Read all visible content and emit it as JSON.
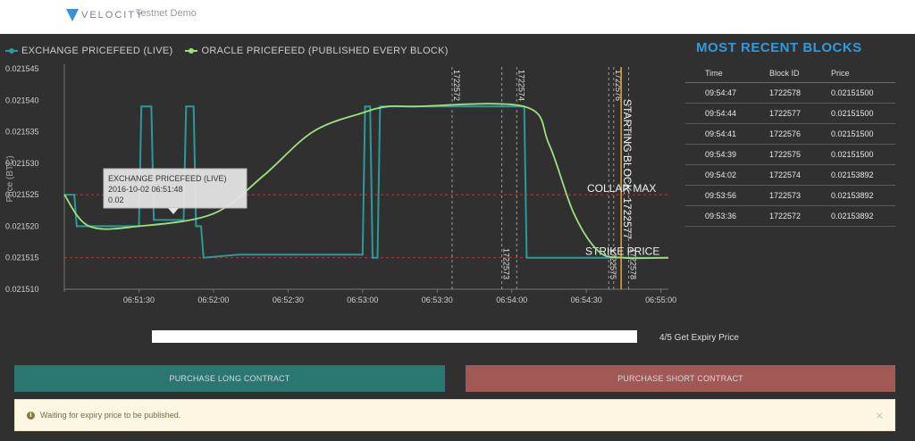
{
  "header": {
    "logo_text": "VELOCITY",
    "network_label": "Testnet Demo",
    "logo_color": "#3a8fd8"
  },
  "chart_data": {
    "type": "line",
    "ylabel": "Price (BTC)",
    "xlabel": "",
    "ylim": [
      0.02151,
      0.021545
    ],
    "xlim": [
      "06:51:00",
      "06:55:03"
    ],
    "y_ticks": [
      "0.021510",
      "0.021515",
      "0.021520",
      "0.021525",
      "0.021530",
      "0.021535",
      "0.021540",
      "0.021545"
    ],
    "x_ticks": [
      "06:51:30",
      "06:52:00",
      "06:52:30",
      "06:53:00",
      "06:53:30",
      "06:54:00",
      "06:54:30",
      "06:55:00"
    ],
    "legend_placement": "top-left",
    "series": [
      {
        "name": "EXCHANGE PRICEFEED (LIVE)",
        "color": "#2a9a9a",
        "x": [
          "06:51:00",
          "06:51:04",
          "06:51:05",
          "06:51:30",
          "06:51:31",
          "06:51:35",
          "06:51:36",
          "06:51:48",
          "06:51:49",
          "06:51:52",
          "06:51:53",
          "06:51:55",
          "06:51:56",
          "06:52:10",
          "06:53:00",
          "06:53:01",
          "06:53:03",
          "06:53:04",
          "06:53:06",
          "06:53:07",
          "06:54:05",
          "06:54:06",
          "06:55:03"
        ],
        "values": [
          0.021525,
          0.021525,
          0.02152,
          0.02152,
          0.021539,
          0.021539,
          0.021521,
          0.021521,
          0.021539,
          0.021539,
          0.02152,
          0.02152,
          0.021515,
          0.0215155,
          0.0215155,
          0.021539,
          0.021539,
          0.021515,
          0.021515,
          0.021539,
          0.021539,
          0.021515,
          0.021515
        ]
      },
      {
        "name": "ORACLE PRICEFEED (PUBLISHED EVERY BLOCK)",
        "color": "#9be27a",
        "x": [
          "06:51:00",
          "06:51:10",
          "06:51:30",
          "06:52:00",
          "06:52:20",
          "06:52:40",
          "06:53:00",
          "06:53:10",
          "06:53:20",
          "06:54:05",
          "06:54:15",
          "06:54:25",
          "06:54:35",
          "06:54:45",
          "06:55:03"
        ],
        "values": [
          0.021525,
          0.02152,
          0.02152,
          0.021522,
          0.021528,
          0.021535,
          0.021538,
          0.021539,
          0.021539,
          0.021539,
          0.021533,
          0.021522,
          0.021516,
          0.021515,
          0.021515
        ]
      }
    ],
    "reference_lines": [
      {
        "label": "COLLAR MAX",
        "value": 0.021525
      },
      {
        "label": "STRIKE PRICE",
        "value": 0.021515
      }
    ],
    "block_markers": [
      {
        "label": "1722572",
        "time": "06:53:36",
        "pos": "top"
      },
      {
        "label": "1722573",
        "time": "06:53:56",
        "pos": "bottom"
      },
      {
        "label": "1722574",
        "time": "06:54:02",
        "pos": "top"
      },
      {
        "label": "1722575",
        "time": "06:54:39",
        "pos": "bottom"
      },
      {
        "label": "1722576",
        "time": "06:54:41",
        "pos": "top"
      },
      {
        "label": "1722578",
        "time": "06:54:47",
        "pos": "bottom"
      }
    ],
    "starting_block": {
      "label": "STARTING BLOCK: 1722577",
      "time": "06:54:44"
    },
    "tooltip": {
      "title": "EXCHANGE PRICEFEED (LIVE)",
      "time": "2016-10-02 06:51:48",
      "value": "0.02"
    }
  },
  "recent_blocks": {
    "title": "MOST RECENT BLOCKS",
    "columns": [
      "Time",
      "Block ID",
      "Price"
    ],
    "rows": [
      [
        "09:54:47",
        "1722578",
        "0.02151500"
      ],
      [
        "09:54:44",
        "1722577",
        "0.02151500"
      ],
      [
        "09:54:41",
        "1722576",
        "0.02151500"
      ],
      [
        "09:54:39",
        "1722575",
        "0.02151500"
      ],
      [
        "09:54:02",
        "1722574",
        "0.02153892"
      ],
      [
        "09:53:56",
        "1722573",
        "0.02153892"
      ],
      [
        "09:53:36",
        "1722572",
        "0.02153892"
      ]
    ]
  },
  "expiry": {
    "progress_fraction": 0.8,
    "label": "4/5 Get Expiry Price"
  },
  "actions": {
    "long_label": "PURCHASE LONG CONTRACT",
    "short_label": "PURCHASE SHORT CONTRACT",
    "long_color": "#2a7772",
    "short_color": "#a25855"
  },
  "alert": {
    "icon": "info-icon",
    "message": "Waiting for expiry price to be published.",
    "close": "×"
  }
}
